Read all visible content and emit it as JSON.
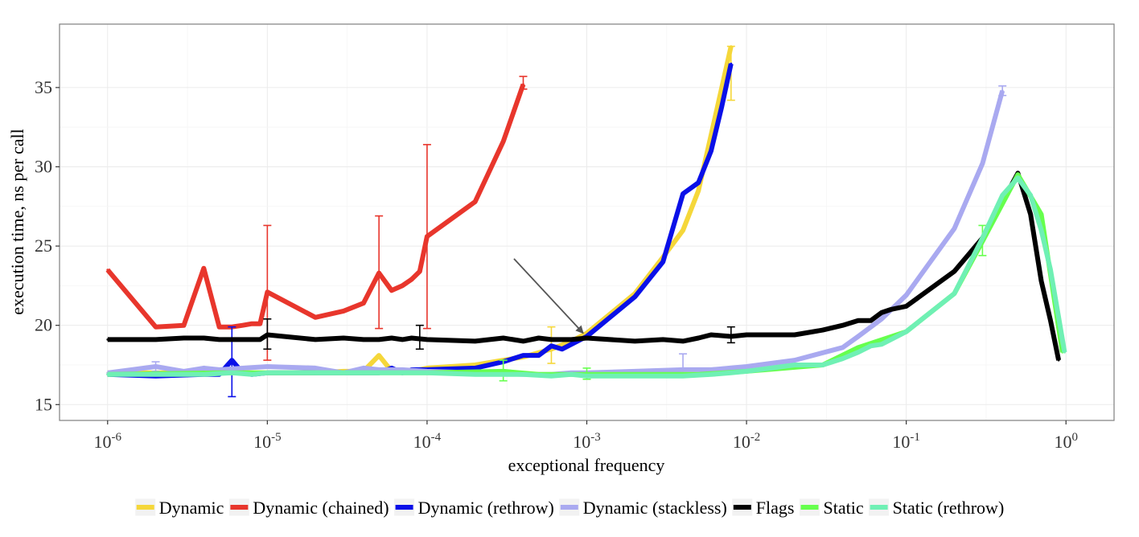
{
  "chart_data": {
    "type": "line",
    "xlabel": "exceptional frequency",
    "ylabel": "execution time, ns per call",
    "x_scale": "log10",
    "xlim": [
      5e-07,
      2
    ],
    "ylim": [
      14,
      39
    ],
    "grid": true,
    "legend_position": "bottom",
    "x_ticks": [
      {
        "value": 1e-06,
        "base": "10",
        "exp": "-6"
      },
      {
        "value": 1e-05,
        "base": "10",
        "exp": "-5"
      },
      {
        "value": 0.0001,
        "base": "10",
        "exp": "-4"
      },
      {
        "value": 0.001,
        "base": "10",
        "exp": "-3"
      },
      {
        "value": 0.01,
        "base": "10",
        "exp": "-2"
      },
      {
        "value": 0.1,
        "base": "10",
        "exp": "-1"
      },
      {
        "value": 1,
        "base": "10",
        "exp": "0"
      }
    ],
    "y_ticks": [
      15,
      20,
      25,
      30,
      35
    ],
    "annotation": {
      "type": "arrow",
      "from": [
        0.00035,
        24.2
      ],
      "to": [
        0.00095,
        19.5
      ]
    },
    "series": [
      {
        "name": "Dynamic",
        "color": "#f5d73a",
        "x": [
          1e-06,
          2e-06,
          5e-06,
          1e-05,
          2e-05,
          3e-05,
          4e-05,
          5e-05,
          6e-05,
          8e-05,
          0.0001,
          0.0002,
          0.0003,
          0.0004,
          0.0006,
          0.0008,
          0.001,
          0.002,
          0.003,
          0.004,
          0.005,
          0.006,
          0.007,
          0.008
        ],
        "y": [
          17.0,
          17.0,
          17.0,
          17.0,
          17.0,
          17.1,
          17.1,
          18.1,
          17.1,
          17.1,
          17.3,
          17.5,
          17.8,
          18.0,
          18.5,
          19.0,
          19.5,
          22.0,
          24.3,
          26.0,
          28.5,
          32.0,
          35.0,
          37.6
        ],
        "error_bars": [
          {
            "x": 0.0006,
            "low": 17.6,
            "high": 19.9
          },
          {
            "x": 0.008,
            "low": 34.2,
            "high": 37.6
          }
        ]
      },
      {
        "name": "Dynamic (chained)",
        "color": "#e8362c",
        "x": [
          1e-06,
          2e-06,
          3e-06,
          4e-06,
          5e-06,
          6e-06,
          7e-06,
          8e-06,
          9e-06,
          1e-05,
          2e-05,
          3e-05,
          4e-05,
          5e-05,
          6e-05,
          7e-05,
          8e-05,
          9e-05,
          0.0001,
          0.0002,
          0.0003,
          0.0004
        ],
        "y": [
          23.5,
          19.9,
          20.0,
          23.6,
          19.9,
          19.9,
          20.0,
          20.1,
          20.1,
          22.1,
          20.5,
          20.9,
          21.4,
          23.3,
          22.2,
          22.5,
          22.9,
          23.4,
          25.6,
          27.8,
          31.6,
          35.2
        ],
        "error_bars": [
          {
            "x": 1e-05,
            "low": 17.8,
            "high": 26.3
          },
          {
            "x": 5e-05,
            "low": 19.8,
            "high": 26.9
          },
          {
            "x": 0.0001,
            "low": 19.8,
            "high": 31.4
          },
          {
            "x": 0.0004,
            "low": 34.9,
            "high": 35.7
          }
        ]
      },
      {
        "name": "Dynamic (rethrow)",
        "color": "#0a10e8",
        "x": [
          1e-06,
          2e-06,
          4e-06,
          5e-06,
          6e-06,
          7e-06,
          8e-06,
          1e-05,
          2e-05,
          3e-05,
          5e-05,
          6e-05,
          7e-05,
          8e-05,
          0.0001,
          0.0002,
          0.0003,
          0.0004,
          0.0005,
          0.0006,
          0.0007,
          0.0008,
          0.001,
          0.002,
          0.003,
          0.004,
          0.005,
          0.006,
          0.007,
          0.008
        ],
        "y": [
          16.9,
          16.8,
          16.9,
          16.9,
          17.8,
          17.0,
          16.9,
          17.0,
          17.0,
          17.0,
          17.0,
          17.3,
          17.0,
          17.2,
          17.2,
          17.3,
          17.7,
          18.1,
          18.1,
          18.7,
          18.5,
          18.8,
          19.3,
          21.8,
          24.0,
          28.3,
          29.0,
          31.0,
          33.8,
          36.5
        ],
        "error_bars": [
          {
            "x": 6e-06,
            "low": 15.5,
            "high": 19.9
          }
        ]
      },
      {
        "name": "Dynamic (stackless)",
        "color": "#a9a9f0",
        "x": [
          1e-06,
          2e-06,
          3e-06,
          4e-06,
          5e-06,
          1e-05,
          2e-05,
          3e-05,
          4e-05,
          5e-05,
          7e-05,
          0.0001,
          0.0002,
          0.0004,
          0.0006,
          0.0008,
          0.001,
          0.002,
          0.004,
          0.006,
          0.01,
          0.02,
          0.04,
          0.05,
          0.07,
          0.1,
          0.2,
          0.3,
          0.4
        ],
        "y": [
          17.0,
          17.4,
          17.1,
          17.3,
          17.2,
          17.4,
          17.3,
          17.0,
          17.3,
          17.2,
          17.2,
          17.1,
          17.0,
          16.9,
          16.9,
          17.0,
          17.0,
          17.1,
          17.2,
          17.2,
          17.4,
          17.8,
          18.6,
          19.3,
          20.4,
          21.9,
          26.1,
          30.2,
          34.8
        ],
        "error_bars": [
          {
            "x": 2e-06,
            "low": 17.1,
            "high": 17.7
          },
          {
            "x": 0.004,
            "low": 16.9,
            "high": 18.2
          },
          {
            "x": 0.4,
            "low": 34.5,
            "high": 35.1
          }
        ]
      },
      {
        "name": "Flags",
        "color": "#000000",
        "x": [
          1e-06,
          2e-06,
          3e-06,
          4e-06,
          5e-06,
          6e-06,
          7e-06,
          8e-06,
          9e-06,
          1e-05,
          2e-05,
          3e-05,
          4e-05,
          5e-05,
          6e-05,
          7e-05,
          8e-05,
          0.0001,
          0.0002,
          0.0003,
          0.0004,
          0.0005,
          0.0006,
          0.0008,
          0.001,
          0.002,
          0.003,
          0.004,
          0.005,
          0.006,
          0.008,
          0.01,
          0.02,
          0.03,
          0.04,
          0.05,
          0.06,
          0.07,
          0.08,
          0.1,
          0.2,
          0.3,
          0.4,
          0.5,
          0.6,
          0.7,
          0.8,
          0.9
        ],
        "y": [
          19.1,
          19.1,
          19.2,
          19.2,
          19.1,
          19.1,
          19.1,
          19.1,
          19.1,
          19.4,
          19.1,
          19.2,
          19.1,
          19.1,
          19.2,
          19.1,
          19.2,
          19.1,
          19.0,
          19.2,
          19.0,
          19.2,
          19.1,
          19.1,
          19.2,
          19.0,
          19.1,
          19.0,
          19.2,
          19.4,
          19.3,
          19.4,
          19.4,
          19.7,
          20.0,
          20.3,
          20.3,
          20.8,
          21.0,
          21.2,
          23.4,
          25.5,
          27.8,
          29.6,
          27.0,
          22.8,
          20.3,
          17.8
        ],
        "error_bars": [
          {
            "x": 1e-05,
            "low": 18.5,
            "high": 20.4
          },
          {
            "x": 9e-05,
            "low": 18.5,
            "high": 20.0
          },
          {
            "x": 0.008,
            "low": 18.9,
            "high": 19.9
          }
        ]
      },
      {
        "name": "Static",
        "color": "#66ff4d",
        "x": [
          1e-06,
          5e-06,
          1e-05,
          3e-05,
          0.0001,
          0.0003,
          0.0005,
          0.0008,
          0.001,
          0.003,
          0.005,
          0.01,
          0.03,
          0.05,
          0.1,
          0.2,
          0.3,
          0.5,
          0.7,
          0.95
        ],
        "y": [
          16.9,
          17.0,
          17.0,
          17.0,
          17.0,
          17.1,
          16.9,
          16.9,
          16.9,
          16.9,
          16.9,
          17.1,
          17.5,
          18.6,
          19.6,
          22.0,
          25.3,
          29.5,
          27.0,
          18.3
        ],
        "error_bars": [
          {
            "x": 0.0003,
            "low": 16.5,
            "high": 17.8
          },
          {
            "x": 0.001,
            "low": 16.6,
            "high": 17.3
          },
          {
            "x": 0.3,
            "low": 24.4,
            "high": 26.3
          }
        ]
      },
      {
        "name": "Static (rethrow)",
        "color": "#6ff0b4",
        "x": [
          1e-06,
          2e-06,
          4e-06,
          6e-06,
          8e-06,
          1e-05,
          2e-05,
          4e-05,
          0.0001,
          0.0002,
          0.0004,
          0.0006,
          0.0008,
          0.001,
          0.002,
          0.004,
          0.006,
          0.008,
          0.01,
          0.02,
          0.03,
          0.04,
          0.05,
          0.06,
          0.07,
          0.08,
          0.1,
          0.2,
          0.3,
          0.4,
          0.5,
          0.6,
          0.7,
          0.8,
          0.9,
          0.98
        ],
        "y": [
          16.9,
          16.9,
          16.9,
          17.0,
          16.9,
          17.0,
          17.0,
          17.0,
          17.0,
          16.9,
          16.9,
          16.8,
          16.9,
          16.8,
          16.8,
          16.8,
          16.9,
          17.0,
          17.1,
          17.5,
          17.5,
          17.9,
          18.3,
          18.7,
          18.8,
          19.1,
          19.6,
          22.0,
          25.5,
          28.2,
          29.3,
          28.2,
          26.0,
          23.5,
          20.5,
          18.3
        ],
        "error_bars": []
      }
    ]
  }
}
